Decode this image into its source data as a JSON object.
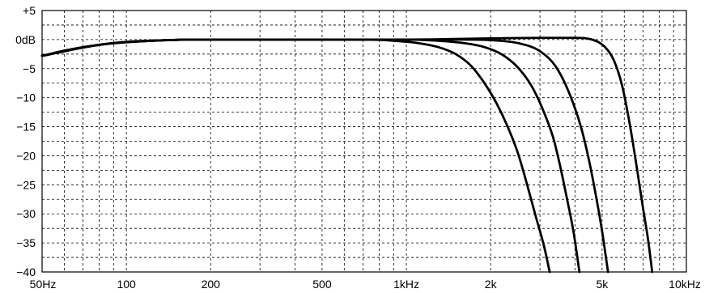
{
  "chart_data": {
    "type": "line",
    "title": "",
    "xlabel": "",
    "ylabel": "",
    "x_scale": "log",
    "xlim": [
      50,
      10000
    ],
    "ylim": [
      -40,
      5
    ],
    "grid": true,
    "x_ticks": [
      {
        "value": 50,
        "label": "50Hz"
      },
      {
        "value": 100,
        "label": "100"
      },
      {
        "value": 200,
        "label": "200"
      },
      {
        "value": 500,
        "label": "500"
      },
      {
        "value": 1000,
        "label": "1kHz"
      },
      {
        "value": 2000,
        "label": "2k"
      },
      {
        "value": 5000,
        "label": "5k"
      },
      {
        "value": 10000,
        "label": "10kHz"
      }
    ],
    "y_ticks": [
      {
        "value": 5,
        "label": "+5"
      },
      {
        "value": 0,
        "label": "0dB"
      },
      {
        "value": -5,
        "label": "−5"
      },
      {
        "value": -10,
        "label": "−10"
      },
      {
        "value": -15,
        "label": "−15"
      },
      {
        "value": -20,
        "label": "−20"
      },
      {
        "value": -25,
        "label": "−25"
      },
      {
        "value": -30,
        "label": "−30"
      },
      {
        "value": -35,
        "label": "−35"
      },
      {
        "value": -40,
        "label": "−40"
      }
    ],
    "series": [
      {
        "color": "#000000",
        "points": [
          [
            50,
            -2.8
          ],
          [
            60,
            -1.9
          ],
          [
            70,
            -1.3
          ],
          [
            80,
            -0.9
          ],
          [
            100,
            -0.4
          ],
          [
            130,
            -0.15
          ],
          [
            200,
            0
          ],
          [
            400,
            0
          ],
          [
            700,
            0
          ],
          [
            900,
            -0.2
          ],
          [
            1100,
            -0.6
          ],
          [
            1300,
            -1.3
          ],
          [
            1500,
            -2.5
          ],
          [
            1700,
            -4.5
          ],
          [
            1900,
            -7.5
          ],
          [
            2100,
            -11
          ],
          [
            2300,
            -15
          ],
          [
            2500,
            -19.5
          ],
          [
            2700,
            -25
          ],
          [
            2900,
            -30.5
          ],
          [
            3100,
            -35.5
          ],
          [
            3250,
            -40
          ]
        ]
      },
      {
        "color": "#000000",
        "points": [
          [
            50,
            -2.8
          ],
          [
            80,
            -0.9
          ],
          [
            130,
            -0.15
          ],
          [
            200,
            0
          ],
          [
            700,
            0
          ],
          [
            1000,
            0
          ],
          [
            1300,
            -0.2
          ],
          [
            1600,
            -0.6
          ],
          [
            1900,
            -1.3
          ],
          [
            2200,
            -2.6
          ],
          [
            2500,
            -4.8
          ],
          [
            2800,
            -8
          ],
          [
            3100,
            -12.5
          ],
          [
            3350,
            -17
          ],
          [
            3550,
            -22
          ],
          [
            3750,
            -27.5
          ],
          [
            3950,
            -33
          ],
          [
            4150,
            -40
          ]
        ]
      },
      {
        "color": "#000000",
        "points": [
          [
            50,
            -2.8
          ],
          [
            80,
            -0.9
          ],
          [
            130,
            -0.15
          ],
          [
            200,
            0
          ],
          [
            1000,
            0
          ],
          [
            1500,
            0
          ],
          [
            2000,
            -0.1
          ],
          [
            2500,
            -0.6
          ],
          [
            3000,
            -2
          ],
          [
            3400,
            -4.5
          ],
          [
            3800,
            -9
          ],
          [
            4200,
            -15
          ],
          [
            4500,
            -21
          ],
          [
            4800,
            -28
          ],
          [
            5000,
            -33
          ],
          [
            5250,
            -40
          ]
        ]
      },
      {
        "color": "#000000",
        "points": [
          [
            50,
            -2.8
          ],
          [
            80,
            -0.9
          ],
          [
            130,
            -0.15
          ],
          [
            200,
            0
          ],
          [
            1000,
            0
          ],
          [
            2000,
            0.2
          ],
          [
            3000,
            0.3
          ],
          [
            4000,
            0.3
          ],
          [
            4600,
            0
          ],
          [
            5100,
            -1.2
          ],
          [
            5500,
            -3.5
          ],
          [
            5900,
            -8
          ],
          [
            6300,
            -15
          ],
          [
            6650,
            -22
          ],
          [
            7000,
            -29
          ],
          [
            7300,
            -34.5
          ],
          [
            7550,
            -40
          ]
        ]
      }
    ]
  }
}
